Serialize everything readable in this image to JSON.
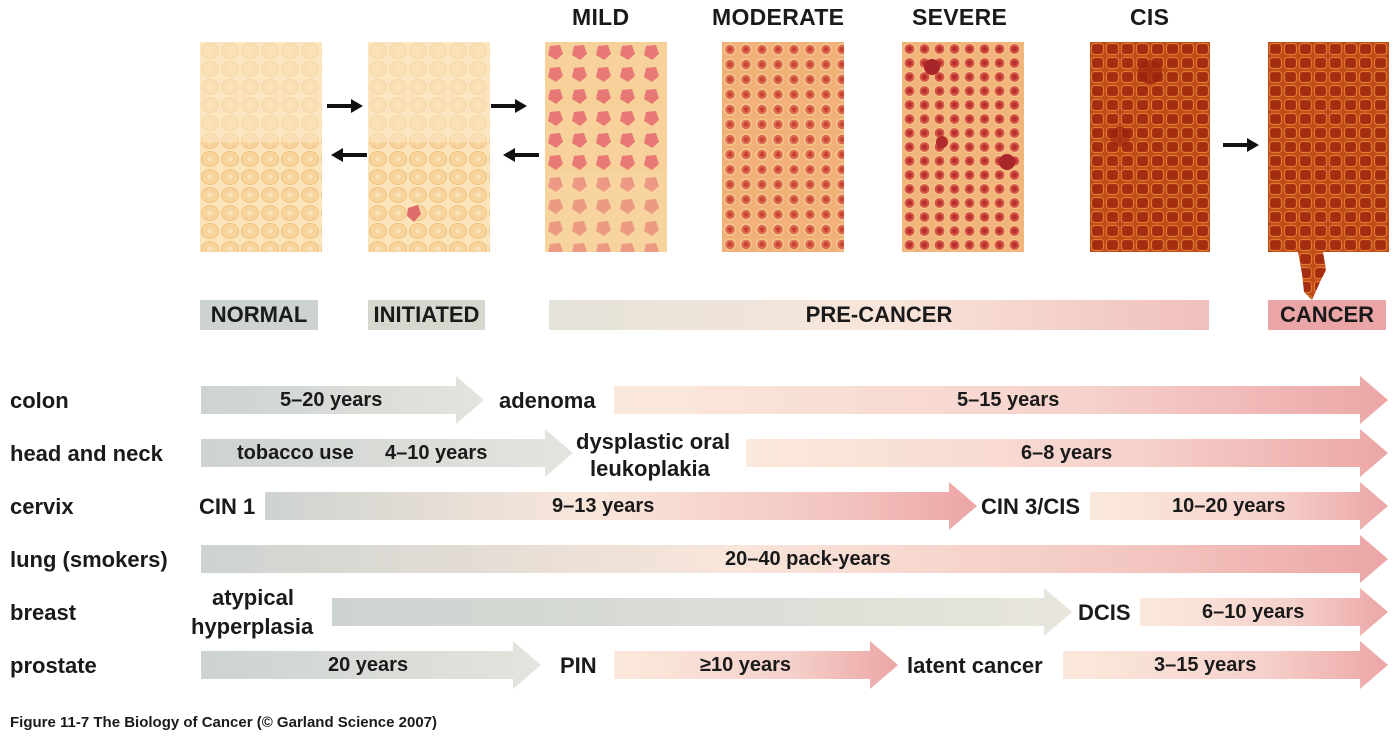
{
  "stages": {
    "mild": "MILD",
    "moderate": "MODERATE",
    "severe": "SEVERE",
    "cis": "CIS"
  },
  "bands": {
    "normal": "NORMAL",
    "initiated": "INITIATED",
    "precancer": "PRE-CANCER",
    "cancer": "CANCER"
  },
  "rows": {
    "colon": {
      "label": "colon",
      "t1": "5–20 years",
      "mid": "adenoma",
      "t2": "5–15 years"
    },
    "headneck": {
      "label": "head and neck",
      "t1a": "tobacco use",
      "t1b": "4–10 years",
      "mid1": "dysplastic oral",
      "mid2": "leukoplakia",
      "t2": "6–8 years"
    },
    "cervix": {
      "label": "cervix",
      "start": "CIN 1",
      "t1": "9–13 years",
      "mid": "CIN 3/CIS",
      "t2": "10–20 years"
    },
    "lung": {
      "label": "lung (smokers)",
      "t1": "20–40 pack-years"
    },
    "breast": {
      "label": "breast",
      "start1": "atypical",
      "start2": "hyperplasia",
      "mid": "DCIS",
      "t2": "6–10 years"
    },
    "prostate": {
      "label": "prostate",
      "t1": "20 years",
      "mid1": "PIN",
      "t2": "≥10 years",
      "mid2": "latent cancer",
      "t3": "3–15 years"
    }
  },
  "caption": "Figure 11-7  The Biology of Cancer (© Garland Science 2007)",
  "colors": {
    "normal": "#f8deb0",
    "dysplastic": "#e06b6b",
    "cancer": "#b5340f"
  }
}
